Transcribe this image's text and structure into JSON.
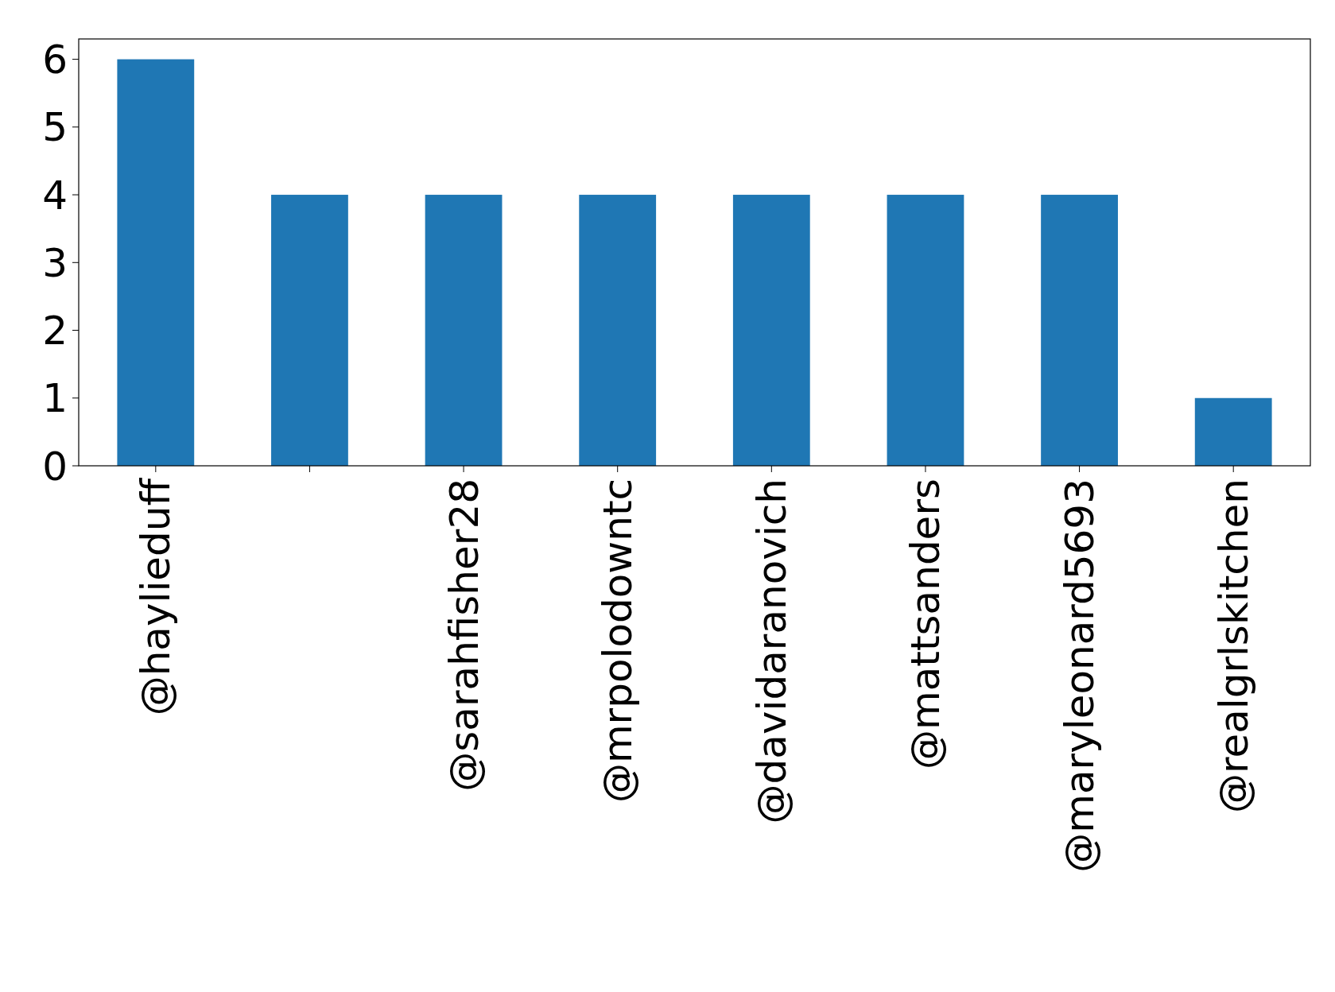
{
  "chart_data": {
    "type": "bar",
    "categories": [
      "@haylieduff",
      null,
      "@sarahfisher28",
      "@mrpolodowntc",
      "@davidaranovich",
      "@mattsanders",
      "@maryleonard5693",
      "@realgrlskitchen"
    ],
    "values": [
      6,
      4,
      4,
      4,
      4,
      4,
      4,
      1
    ],
    "color": "#1f77b4",
    "ylim": [
      0,
      6.3
    ],
    "yticks": [
      0,
      1,
      2,
      3,
      4,
      5,
      6
    ],
    "grid": false
  }
}
